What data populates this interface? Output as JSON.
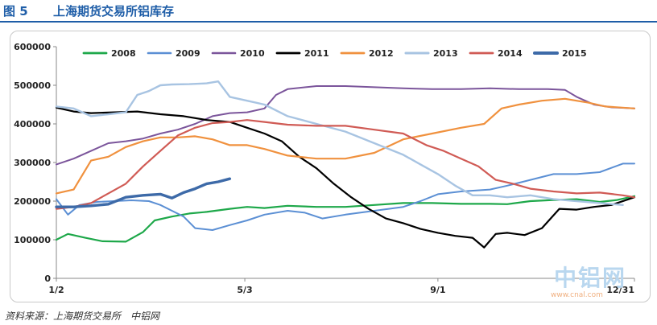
{
  "header": {
    "fig_label": "图 5",
    "title": "上海期货交易所铝库存"
  },
  "footer": {
    "source": "资料来源：上海期货交易所　中铝网"
  },
  "watermark": {
    "name": "中铝网",
    "url": "www.cnal.com"
  },
  "chart_data": {
    "type": "line",
    "title": "",
    "xlabel": "",
    "ylabel": "",
    "x_tick_labels": [
      "1/2",
      "5/3",
      "9/1",
      "12/31"
    ],
    "x_tick_pos": [
      0,
      0.326,
      0.66,
      1
    ],
    "y_ticks": [
      0,
      100000,
      200000,
      300000,
      400000,
      500000,
      600000
    ],
    "ylim": [
      0,
      600000
    ],
    "grid": false,
    "legend": "top",
    "series": [
      {
        "name": "2008",
        "color": "#1ea84a",
        "width": 2.2,
        "x": [
          0,
          0.02,
          0.05,
          0.08,
          0.12,
          0.15,
          0.17,
          0.2,
          0.23,
          0.26,
          0.3,
          0.33,
          0.36,
          0.4,
          0.45,
          0.5,
          0.55,
          0.6,
          0.65,
          0.7,
          0.75,
          0.78,
          0.82,
          0.86,
          0.9,
          0.94,
          0.97,
          1.0
        ],
        "y": [
          100000,
          115000,
          105000,
          96000,
          95000,
          120000,
          150000,
          160000,
          168000,
          172000,
          180000,
          185000,
          182000,
          188000,
          185000,
          185000,
          190000,
          195000,
          195000,
          193000,
          193000,
          192000,
          200000,
          203000,
          205000,
          198000,
          203000,
          213000
        ]
      },
      {
        "name": "2009",
        "color": "#5b8fd4",
        "width": 2.0,
        "x": [
          0,
          0.02,
          0.04,
          0.07,
          0.1,
          0.13,
          0.16,
          0.18,
          0.2,
          0.22,
          0.24,
          0.27,
          0.3,
          0.33,
          0.36,
          0.4,
          0.43,
          0.46,
          0.5,
          0.55,
          0.6,
          0.63,
          0.66,
          0.7,
          0.75,
          0.78,
          0.82,
          0.86,
          0.9,
          0.94,
          0.98,
          1.0
        ],
        "y": [
          205000,
          165000,
          190000,
          198000,
          200000,
          202000,
          200000,
          190000,
          175000,
          160000,
          130000,
          125000,
          138000,
          150000,
          165000,
          175000,
          170000,
          155000,
          165000,
          175000,
          185000,
          200000,
          218000,
          225000,
          230000,
          240000,
          255000,
          270000,
          270000,
          275000,
          297000,
          297000
        ]
      },
      {
        "name": "2010",
        "color": "#7b559b",
        "width": 2.0,
        "x": [
          0,
          0.03,
          0.06,
          0.09,
          0.12,
          0.15,
          0.18,
          0.21,
          0.24,
          0.27,
          0.3,
          0.33,
          0.36,
          0.38,
          0.4,
          0.45,
          0.5,
          0.55,
          0.6,
          0.65,
          0.7,
          0.75,
          0.8,
          0.85,
          0.88,
          0.9,
          0.93,
          0.96,
          1.0
        ],
        "y": [
          295000,
          310000,
          330000,
          350000,
          355000,
          362000,
          375000,
          385000,
          400000,
          420000,
          428000,
          430000,
          440000,
          475000,
          490000,
          498000,
          498000,
          495000,
          492000,
          490000,
          490000,
          492000,
          490000,
          490000,
          488000,
          470000,
          450000,
          443000,
          440000
        ]
      },
      {
        "name": "2011",
        "color": "#000000",
        "width": 2.2,
        "x": [
          0,
          0.03,
          0.06,
          0.1,
          0.14,
          0.18,
          0.22,
          0.26,
          0.3,
          0.33,
          0.36,
          0.39,
          0.42,
          0.45,
          0.48,
          0.51,
          0.54,
          0.57,
          0.6,
          0.63,
          0.66,
          0.69,
          0.72,
          0.74,
          0.76,
          0.78,
          0.81,
          0.84,
          0.87,
          0.9,
          0.93,
          0.96,
          1.0
        ],
        "y": [
          442000,
          432000,
          428000,
          430000,
          432000,
          425000,
          420000,
          410000,
          405000,
          390000,
          375000,
          355000,
          315000,
          285000,
          245000,
          210000,
          180000,
          155000,
          143000,
          128000,
          118000,
          110000,
          105000,
          80000,
          115000,
          118000,
          112000,
          130000,
          180000,
          178000,
          185000,
          190000,
          210000
        ]
      },
      {
        "name": "2012",
        "color": "#f0913e",
        "width": 2.2,
        "x": [
          0,
          0.03,
          0.06,
          0.09,
          0.12,
          0.15,
          0.18,
          0.21,
          0.24,
          0.27,
          0.3,
          0.33,
          0.36,
          0.4,
          0.45,
          0.5,
          0.55,
          0.6,
          0.65,
          0.7,
          0.74,
          0.77,
          0.8,
          0.84,
          0.88,
          0.92,
          0.95,
          1.0
        ],
        "y": [
          220000,
          230000,
          305000,
          315000,
          340000,
          355000,
          365000,
          365000,
          368000,
          360000,
          345000,
          345000,
          335000,
          318000,
          310000,
          310000,
          325000,
          360000,
          375000,
          390000,
          400000,
          440000,
          450000,
          460000,
          465000,
          455000,
          445000,
          440000
        ]
      },
      {
        "name": "2013",
        "color": "#a8c4e2",
        "width": 2.4,
        "x": [
          0,
          0.03,
          0.06,
          0.09,
          0.12,
          0.14,
          0.16,
          0.18,
          0.2,
          0.23,
          0.26,
          0.28,
          0.3,
          0.33,
          0.36,
          0.4,
          0.45,
          0.5,
          0.55,
          0.6,
          0.63,
          0.66,
          0.69,
          0.72,
          0.75,
          0.78,
          0.82,
          0.86,
          0.9,
          0.94,
          0.98
        ],
        "y": [
          445000,
          440000,
          420000,
          425000,
          430000,
          475000,
          485000,
          500000,
          502000,
          503000,
          505000,
          510000,
          470000,
          460000,
          450000,
          420000,
          400000,
          380000,
          350000,
          320000,
          295000,
          270000,
          240000,
          215000,
          215000,
          210000,
          215000,
          205000,
          200000,
          195000,
          190000
        ]
      },
      {
        "name": "2014",
        "color": "#d05b55",
        "width": 2.2,
        "x": [
          0,
          0.03,
          0.06,
          0.09,
          0.12,
          0.15,
          0.18,
          0.21,
          0.24,
          0.27,
          0.3,
          0.33,
          0.36,
          0.4,
          0.45,
          0.5,
          0.55,
          0.6,
          0.64,
          0.67,
          0.7,
          0.73,
          0.76,
          0.79,
          0.82,
          0.86,
          0.9,
          0.94,
          0.98,
          1.0
        ],
        "y": [
          180000,
          185000,
          195000,
          220000,
          245000,
          290000,
          330000,
          370000,
          390000,
          402000,
          405000,
          410000,
          405000,
          398000,
          395000,
          395000,
          385000,
          375000,
          345000,
          330000,
          310000,
          290000,
          255000,
          245000,
          232000,
          225000,
          220000,
          222000,
          215000,
          210000
        ]
      },
      {
        "name": "2015",
        "color": "#3d6aa8",
        "width": 3.4,
        "x": [
          0,
          0.03,
          0.06,
          0.09,
          0.12,
          0.15,
          0.18,
          0.2,
          0.22,
          0.24,
          0.26,
          0.28,
          0.3
        ],
        "y": [
          185000,
          185000,
          188000,
          192000,
          210000,
          215000,
          218000,
          208000,
          222000,
          232000,
          245000,
          250000,
          258000
        ]
      }
    ]
  }
}
